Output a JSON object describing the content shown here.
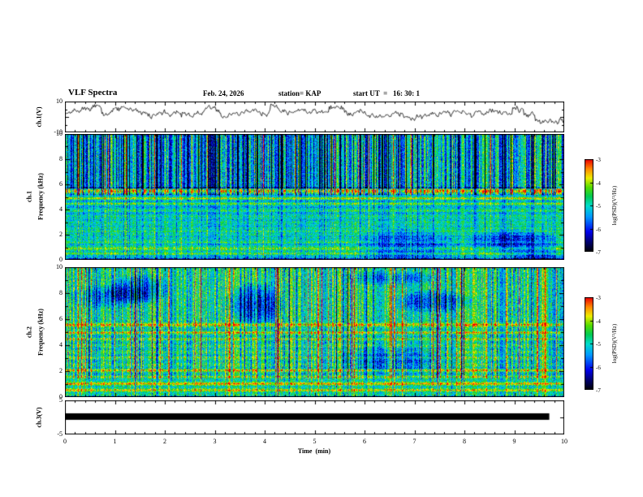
{
  "header": {
    "title": "VLF Spectra",
    "date": "Feb. 24, 2026",
    "station": "station= KAP",
    "start_ut": "start UT  =   16: 30: 1"
  },
  "axes": {
    "time": {
      "label": "Time  (min)",
      "min": 0,
      "max": 10,
      "ticks": [
        0,
        1,
        2,
        3,
        4,
        5,
        6,
        7,
        8,
        9,
        10
      ]
    },
    "ch1v": {
      "label": "ch.1(V)",
      "min": -10,
      "max": 10,
      "tick_labels": [
        10,
        -10
      ]
    },
    "ch1f": {
      "channel": "ch.1",
      "label": "Frequency  (kHz)",
      "min": 0,
      "max": 10,
      "tick_labels": [
        10,
        8,
        6,
        4,
        2,
        0
      ]
    },
    "ch2f": {
      "channel": "ch.2",
      "label": "Frequency  (kHz)",
      "min": 0,
      "max": 10,
      "tick_labels": [
        10,
        8,
        6,
        4,
        2,
        0
      ]
    },
    "ch3v": {
      "label": "ch.3(V)",
      "min": -5,
      "max": 5,
      "tick_labels": [
        5,
        -5
      ]
    }
  },
  "colorbar": {
    "label": "log(PSD)(V²/Hz)",
    "min": -7,
    "max": -3,
    "tick_labels": [
      -3,
      -4,
      -5,
      -6,
      -7
    ]
  },
  "colormap": {
    "min": -7,
    "max": -3,
    "stops": [
      {
        "t": 0.0,
        "c": "#000000"
      },
      {
        "t": 0.1,
        "c": "#000066"
      },
      {
        "t": 0.22,
        "c": "#0000ee"
      },
      {
        "t": 0.38,
        "c": "#0099ff"
      },
      {
        "t": 0.5,
        "c": "#00ddcc"
      },
      {
        "t": 0.6,
        "c": "#00cc55"
      },
      {
        "t": 0.7,
        "c": "#55dd00"
      },
      {
        "t": 0.8,
        "c": "#eeee00"
      },
      {
        "t": 0.9,
        "c": "#ff8800"
      },
      {
        "t": 1.0,
        "c": "#ee0000"
      }
    ]
  },
  "chart_data": [
    {
      "type": "line",
      "name": "ch1_voltage_waveform",
      "ylabel": "ch.1(V)",
      "xlim": [
        0,
        10
      ],
      "ylim": [
        -10,
        10
      ],
      "description": "Noisy broadband waveform fluctuating mostly between -3 and 8 V with frequent downward/upward spikes",
      "seed": 7,
      "mean": 3.0,
      "step": 2.4,
      "spike_prob": 0.035,
      "spike_amp": 9,
      "jitter": 1.8
    },
    {
      "type": "heatmap",
      "name": "ch1_spectrogram",
      "ylabel": "Frequency (kHz)",
      "zlabel": "log(PSD)(V²/Hz)",
      "xlim": [
        0,
        10
      ],
      "ylim": [
        0,
        10
      ],
      "zlim": [
        -7,
        -3
      ],
      "description": "VLF spectrogram: green/cyan background near -5, dense dark-blue vertical streaks above ~5 kHz, bright red/yellow horizontal emission lines near 5.5, 4.9, 2.3, 1.4 and 0.9 kHz",
      "seed": 11,
      "base": -5.0,
      "hi_offset": -0.25,
      "streak_f_split": 5.2,
      "streak_w_hi": 1.15,
      "streak_w_lo": 0.35,
      "streak_sigma": 1.0,
      "neg_streak_prob": 0.18,
      "pos_streak_prob": 0.05,
      "noise": 1.1,
      "stripe_amp": 0.25,
      "blob_count": 3,
      "bands": [
        [
          5.5,
          0.3,
          1.8
        ],
        [
          4.9,
          0.15,
          1.0
        ],
        [
          4.5,
          0.12,
          0.7
        ],
        [
          3.9,
          0.1,
          0.4
        ],
        [
          3.3,
          0.1,
          0.4
        ],
        [
          2.8,
          0.1,
          0.5
        ],
        [
          2.3,
          0.12,
          0.9
        ],
        [
          1.8,
          0.1,
          0.5
        ],
        [
          1.4,
          0.12,
          0.8
        ],
        [
          0.9,
          0.2,
          1.1
        ],
        [
          0.5,
          0.15,
          0.8
        ],
        [
          5.75,
          0.08,
          -1.6
        ],
        [
          0.12,
          0.1,
          -1.2
        ]
      ]
    },
    {
      "type": "heatmap",
      "name": "ch2_spectrogram",
      "ylabel": "Frequency (kHz)",
      "zlabel": "log(PSD)(V²/Hz)",
      "xlim": [
        0,
        10
      ],
      "ylim": [
        0,
        10
      ],
      "zlim": [
        -7,
        -3
      ],
      "description": "VLF spectrogram: green/yellow background near -4.8, bright yellow vertical sferic streaks over full height, blue patches, horizontal lines near 5.6, 5.0, 2.1, 1.05 and 0.55 kHz",
      "seed": 23,
      "base": -4.78,
      "hi_offset": -0.05,
      "streak_f_split": 1.5,
      "streak_w_hi": 0.9,
      "streak_w_lo": 0.5,
      "streak_sigma": 0.9,
      "neg_streak_prob": 0.06,
      "pos_streak_prob": 0.12,
      "noise": 1.15,
      "stripe_amp": 0.2,
      "blob_count": 6,
      "bands": [
        [
          5.6,
          0.2,
          1.3
        ],
        [
          5.0,
          0.15,
          0.9
        ],
        [
          4.5,
          0.1,
          0.5
        ],
        [
          3.1,
          0.1,
          0.4
        ],
        [
          2.1,
          0.15,
          1.0
        ],
        [
          1.6,
          0.1,
          0.6
        ],
        [
          1.05,
          0.18,
          1.1
        ],
        [
          0.55,
          0.15,
          0.9
        ],
        [
          0.08,
          0.08,
          -1.6
        ]
      ]
    },
    {
      "type": "area",
      "name": "ch3_voltage",
      "ylabel": "ch.3(V)",
      "xlim": [
        0,
        10
      ],
      "ylim": [
        -5,
        5
      ],
      "description": "Saturated/clipped signal drawn as a solid black band near 0 V spanning nearly the whole record",
      "bar": {
        "x_start": 0,
        "x_end": 9.7,
        "y_top": 1.2,
        "y_bottom": -0.7
      }
    }
  ]
}
